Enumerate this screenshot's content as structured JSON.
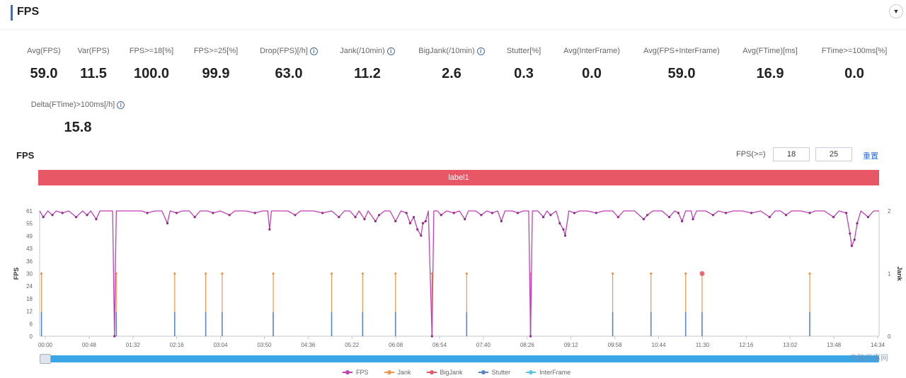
{
  "header": {
    "title": "FPS",
    "collapse_icon": "chevron-down-icon"
  },
  "metrics_row1": [
    {
      "label": "Avg(FPS)",
      "value": "59.0",
      "info": false
    },
    {
      "label": "Var(FPS)",
      "value": "11.5",
      "info": false
    },
    {
      "label": "FPS>=18[%]",
      "value": "100.0",
      "info": false
    },
    {
      "label": "FPS>=25[%]",
      "value": "99.9",
      "info": false
    },
    {
      "label": "Drop(FPS)[/h]",
      "value": "63.0",
      "info": true
    },
    {
      "label": "Jank(/10min)",
      "value": "11.2",
      "info": true
    },
    {
      "label": "BigJank(/10min)",
      "value": "2.6",
      "info": true
    },
    {
      "label": "Stutter[%]",
      "value": "0.3",
      "info": false
    },
    {
      "label": "Avg(InterFrame)",
      "value": "0.0",
      "info": false
    },
    {
      "label": "Avg(FPS+InterFrame)",
      "value": "59.0",
      "info": false
    },
    {
      "label": "Avg(FTime)[ms]",
      "value": "16.9",
      "info": false
    },
    {
      "label": "FTime>=100ms[%]",
      "value": "0.0",
      "info": false
    }
  ],
  "metrics_row2": [
    {
      "label": "Delta(FTime)>100ms[/h]",
      "value": "15.8",
      "info": true
    }
  ],
  "fps_section": {
    "title": "FPS",
    "threshold_label": "FPS(>=)",
    "threshold_low": "18",
    "threshold_high": "25",
    "reset_label": "重置",
    "label_bar": "label1"
  },
  "watermark": "电脑百事网",
  "legend": [
    {
      "name": "FPS",
      "color": "#c23fb8"
    },
    {
      "name": "Jank",
      "color": "#f0964a"
    },
    {
      "name": "BigJank",
      "color": "#e05a6a"
    },
    {
      "name": "Stutter",
      "color": "#5b86c5"
    },
    {
      "name": "InterFrame",
      "color": "#5cc7dd"
    }
  ],
  "chart_data": {
    "type": "line",
    "ylabel": "FPS",
    "ylabel_right": "Jank",
    "ylim": [
      0,
      61
    ],
    "y_ticks": [
      "0",
      "6",
      "12",
      "18",
      "24",
      "30",
      "36",
      "43",
      "49",
      "55",
      "61"
    ],
    "y2lim": [
      0,
      2
    ],
    "y2_ticks": [
      "0",
      "1",
      "2"
    ],
    "x_ticks": [
      "00:00",
      "00:48",
      "01:32",
      "02:16",
      "03:04",
      "03:50",
      "04:36",
      "05:22",
      "06:08",
      "06:54",
      "07:40",
      "08:26",
      "09:12",
      "09:58",
      "10:44",
      "11:30",
      "12:16",
      "13:02",
      "13:48",
      "14:34"
    ],
    "x_range_seconds": [
      0,
      920
    ],
    "fps_baseline": 61,
    "fps_series": [
      [
        0,
        61
      ],
      [
        4,
        58
      ],
      [
        9,
        61
      ],
      [
        14,
        59
      ],
      [
        18,
        61
      ],
      [
        25,
        60
      ],
      [
        32,
        61
      ],
      [
        40,
        58
      ],
      [
        47,
        61
      ],
      [
        52,
        59
      ],
      [
        56,
        61
      ],
      [
        62,
        57
      ],
      [
        66,
        61
      ],
      [
        72,
        61
      ],
      [
        80,
        61
      ],
      [
        82,
        0
      ],
      [
        84,
        61
      ],
      [
        90,
        61
      ],
      [
        100,
        61
      ],
      [
        112,
        61
      ],
      [
        118,
        60
      ],
      [
        126,
        61
      ],
      [
        134,
        61
      ],
      [
        140,
        55
      ],
      [
        143,
        61
      ],
      [
        150,
        60
      ],
      [
        156,
        61
      ],
      [
        164,
        61
      ],
      [
        170,
        58
      ],
      [
        176,
        61
      ],
      [
        184,
        61
      ],
      [
        190,
        60
      ],
      [
        198,
        61
      ],
      [
        208,
        59
      ],
      [
        214,
        61
      ],
      [
        226,
        61
      ],
      [
        236,
        60
      ],
      [
        244,
        61
      ],
      [
        250,
        61
      ],
      [
        252,
        52
      ],
      [
        254,
        61
      ],
      [
        260,
        61
      ],
      [
        272,
        61
      ],
      [
        280,
        59
      ],
      [
        286,
        61
      ],
      [
        300,
        61
      ],
      [
        310,
        60
      ],
      [
        320,
        61
      ],
      [
        328,
        58
      ],
      [
        334,
        61
      ],
      [
        340,
        61
      ],
      [
        346,
        58
      ],
      [
        350,
        61
      ],
      [
        356,
        57
      ],
      [
        360,
        61
      ],
      [
        368,
        56
      ],
      [
        372,
        59
      ],
      [
        378,
        61
      ],
      [
        384,
        61
      ],
      [
        390,
        56
      ],
      [
        396,
        61
      ],
      [
        402,
        60
      ],
      [
        406,
        55
      ],
      [
        410,
        58
      ],
      [
        414,
        52
      ],
      [
        418,
        49
      ],
      [
        420,
        55
      ],
      [
        423,
        56
      ],
      [
        426,
        61
      ],
      [
        430,
        0
      ],
      [
        432,
        61
      ],
      [
        436,
        61
      ],
      [
        440,
        59
      ],
      [
        446,
        61
      ],
      [
        454,
        60
      ],
      [
        460,
        61
      ],
      [
        466,
        57
      ],
      [
        470,
        61
      ],
      [
        478,
        61
      ],
      [
        484,
        59
      ],
      [
        490,
        61
      ],
      [
        496,
        60
      ],
      [
        502,
        61
      ],
      [
        506,
        56
      ],
      [
        510,
        61
      ],
      [
        518,
        61
      ],
      [
        524,
        60
      ],
      [
        530,
        61
      ],
      [
        536,
        61
      ],
      [
        538,
        0
      ],
      [
        540,
        61
      ],
      [
        546,
        61
      ],
      [
        552,
        58
      ],
      [
        556,
        61
      ],
      [
        560,
        59
      ],
      [
        566,
        61
      ],
      [
        570,
        55
      ],
      [
        574,
        52
      ],
      [
        576,
        49
      ],
      [
        580,
        61
      ],
      [
        586,
        60
      ],
      [
        592,
        61
      ],
      [
        600,
        61
      ],
      [
        610,
        60
      ],
      [
        618,
        61
      ],
      [
        628,
        61
      ],
      [
        634,
        58
      ],
      [
        640,
        61
      ],
      [
        652,
        61
      ],
      [
        662,
        57
      ],
      [
        666,
        59
      ],
      [
        672,
        61
      ],
      [
        682,
        61
      ],
      [
        690,
        58
      ],
      [
        696,
        61
      ],
      [
        700,
        60
      ],
      [
        704,
        56
      ],
      [
        708,
        61
      ],
      [
        714,
        61
      ],
      [
        716,
        57
      ],
      [
        720,
        61
      ],
      [
        730,
        61
      ],
      [
        738,
        59
      ],
      [
        744,
        61
      ],
      [
        752,
        60
      ],
      [
        760,
        61
      ],
      [
        770,
        61
      ],
      [
        780,
        60
      ],
      [
        790,
        61
      ],
      [
        800,
        58
      ],
      [
        806,
        61
      ],
      [
        812,
        61
      ],
      [
        818,
        59
      ],
      [
        824,
        61
      ],
      [
        834,
        61
      ],
      [
        844,
        60
      ],
      [
        850,
        61
      ],
      [
        860,
        61
      ],
      [
        870,
        58
      ],
      [
        876,
        61
      ],
      [
        884,
        60
      ],
      [
        888,
        50
      ],
      [
        890,
        44
      ],
      [
        893,
        47
      ],
      [
        896,
        55
      ],
      [
        900,
        61
      ],
      [
        908,
        58
      ],
      [
        914,
        61
      ],
      [
        920,
        61
      ]
    ],
    "jank_events": [
      2,
      84,
      148,
      182,
      200,
      256,
      320,
      354,
      390,
      430,
      468,
      538,
      628,
      670,
      708,
      726,
      844
    ],
    "bigjank_events": [
      726
    ],
    "stutter_events": [
      2,
      84,
      148,
      182,
      200,
      256,
      320,
      354,
      390,
      430,
      468,
      538,
      628,
      670,
      708,
      726,
      844
    ],
    "grid": false,
    "legend_position": "bottom"
  }
}
